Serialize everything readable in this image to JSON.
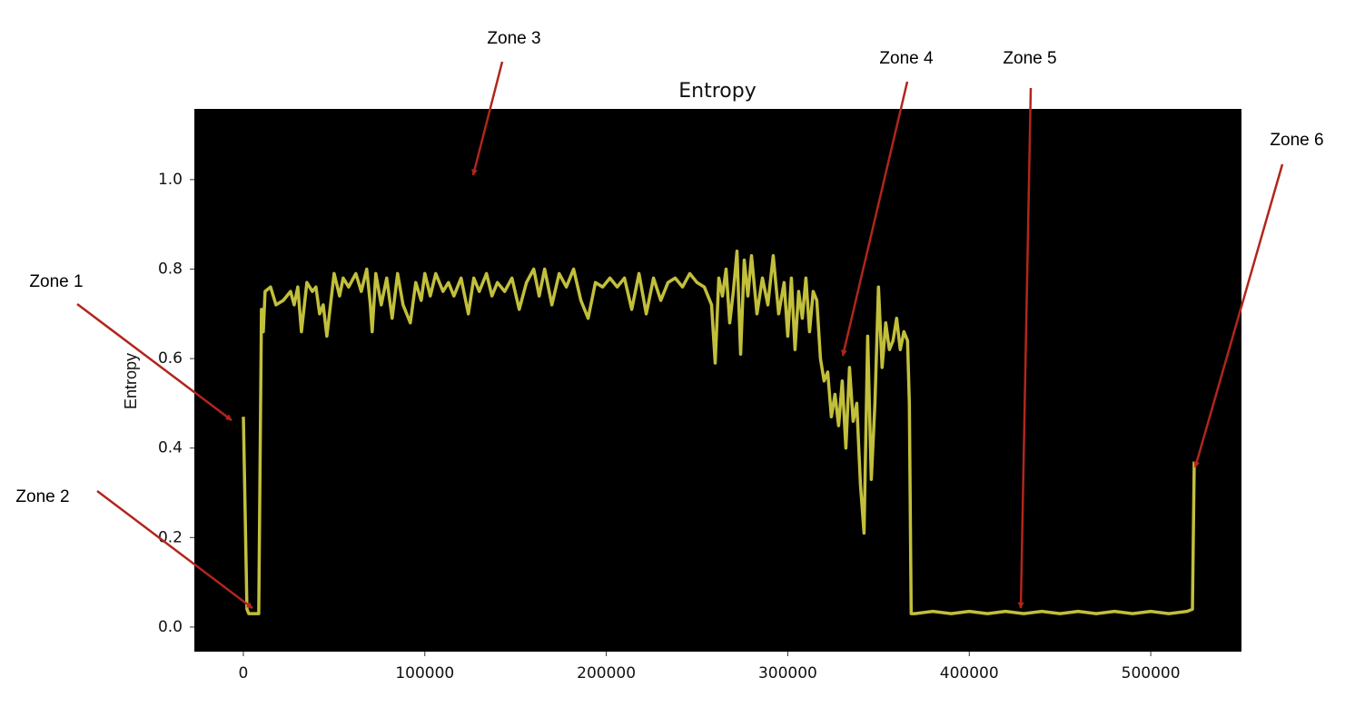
{
  "chart_data": {
    "type": "line",
    "title": "Entropy",
    "y_label": "Entropy",
    "x": [
      0,
      2000,
      3000,
      5000,
      7000,
      8500,
      10000,
      11000,
      12000,
      15000,
      18000,
      22000,
      26000,
      28000,
      30000,
      32000,
      35000,
      38000,
      40000,
      42000,
      44000,
      46000,
      48000,
      50000,
      53000,
      55000,
      58000,
      62000,
      65000,
      68000,
      70000,
      71000,
      73000,
      76000,
      79000,
      82000,
      85000,
      88000,
      92000,
      95000,
      98000,
      100000,
      103000,
      106000,
      110000,
      113000,
      116000,
      120000,
      124000,
      127000,
      130000,
      134000,
      137000,
      140000,
      144000,
      148000,
      152000,
      156000,
      160000,
      163000,
      166000,
      170000,
      174000,
      178000,
      182000,
      186000,
      190000,
      194000,
      198000,
      202000,
      206000,
      210000,
      214000,
      218000,
      222000,
      226000,
      230000,
      234000,
      238000,
      242000,
      246000,
      250000,
      254000,
      258000,
      260000,
      262000,
      264000,
      266000,
      268000,
      270000,
      272000,
      274000,
      276000,
      278000,
      280000,
      283000,
      286000,
      289000,
      292000,
      295000,
      298000,
      300000,
      302000,
      304000,
      306000,
      308000,
      310000,
      312000,
      314000,
      316000,
      318000,
      320000,
      322000,
      324000,
      326000,
      328000,
      330000,
      332000,
      334000,
      336000,
      338000,
      340000,
      342000,
      344000,
      346000,
      348000,
      350000,
      352000,
      354000,
      356000,
      358000,
      360000,
      362000,
      364000,
      366000,
      367000,
      368000,
      370000,
      380000,
      390000,
      400000,
      410000,
      420000,
      430000,
      440000,
      450000,
      460000,
      470000,
      480000,
      490000,
      500000,
      510000,
      520000,
      523000,
      524000
    ],
    "series": [
      {
        "name": "Entropy",
        "color": "#c2bf3c",
        "values": [
          0.47,
          0.04,
          0.03,
          0.03,
          0.03,
          0.03,
          0.71,
          0.66,
          0.75,
          0.76,
          0.72,
          0.73,
          0.75,
          0.72,
          0.76,
          0.66,
          0.77,
          0.75,
          0.76,
          0.7,
          0.72,
          0.65,
          0.72,
          0.79,
          0.74,
          0.78,
          0.76,
          0.79,
          0.75,
          0.8,
          0.72,
          0.66,
          0.79,
          0.72,
          0.78,
          0.69,
          0.79,
          0.72,
          0.68,
          0.77,
          0.73,
          0.79,
          0.74,
          0.79,
          0.75,
          0.77,
          0.74,
          0.78,
          0.7,
          0.78,
          0.75,
          0.79,
          0.74,
          0.77,
          0.75,
          0.78,
          0.71,
          0.77,
          0.8,
          0.74,
          0.8,
          0.72,
          0.79,
          0.76,
          0.8,
          0.73,
          0.69,
          0.77,
          0.76,
          0.78,
          0.76,
          0.78,
          0.71,
          0.79,
          0.7,
          0.78,
          0.73,
          0.77,
          0.78,
          0.76,
          0.79,
          0.77,
          0.76,
          0.72,
          0.59,
          0.78,
          0.74,
          0.8,
          0.68,
          0.75,
          0.84,
          0.61,
          0.82,
          0.74,
          0.83,
          0.7,
          0.78,
          0.72,
          0.83,
          0.7,
          0.77,
          0.65,
          0.78,
          0.62,
          0.75,
          0.69,
          0.78,
          0.66,
          0.75,
          0.73,
          0.6,
          0.55,
          0.57,
          0.47,
          0.52,
          0.45,
          0.55,
          0.4,
          0.58,
          0.46,
          0.5,
          0.32,
          0.21,
          0.65,
          0.33,
          0.5,
          0.76,
          0.58,
          0.68,
          0.62,
          0.64,
          0.69,
          0.62,
          0.66,
          0.64,
          0.5,
          0.03,
          0.03,
          0.035,
          0.03,
          0.035,
          0.03,
          0.035,
          0.03,
          0.035,
          0.03,
          0.035,
          0.03,
          0.035,
          0.03,
          0.035,
          0.03,
          0.035,
          0.04,
          0.37
        ]
      }
    ],
    "xlim": [
      -27000,
      550000
    ],
    "ylim": [
      -0.055,
      1.158
    ],
    "xticks": [
      0,
      100000,
      200000,
      300000,
      400000,
      500000
    ],
    "yticks": [
      {
        "value": 0,
        "label": "0.0"
      },
      0.2,
      0.4,
      0.6,
      0.8,
      {
        "value": 1,
        "label": "1.0"
      }
    ],
    "background": "#000000",
    "annotations": [
      {
        "text": "Zone 1"
      },
      {
        "text": "Zone 2"
      },
      {
        "text": "Zone 3"
      },
      {
        "text": "Zone 4"
      },
      {
        "text": "Zone 5"
      },
      {
        "text": "Zone 6"
      }
    ]
  }
}
